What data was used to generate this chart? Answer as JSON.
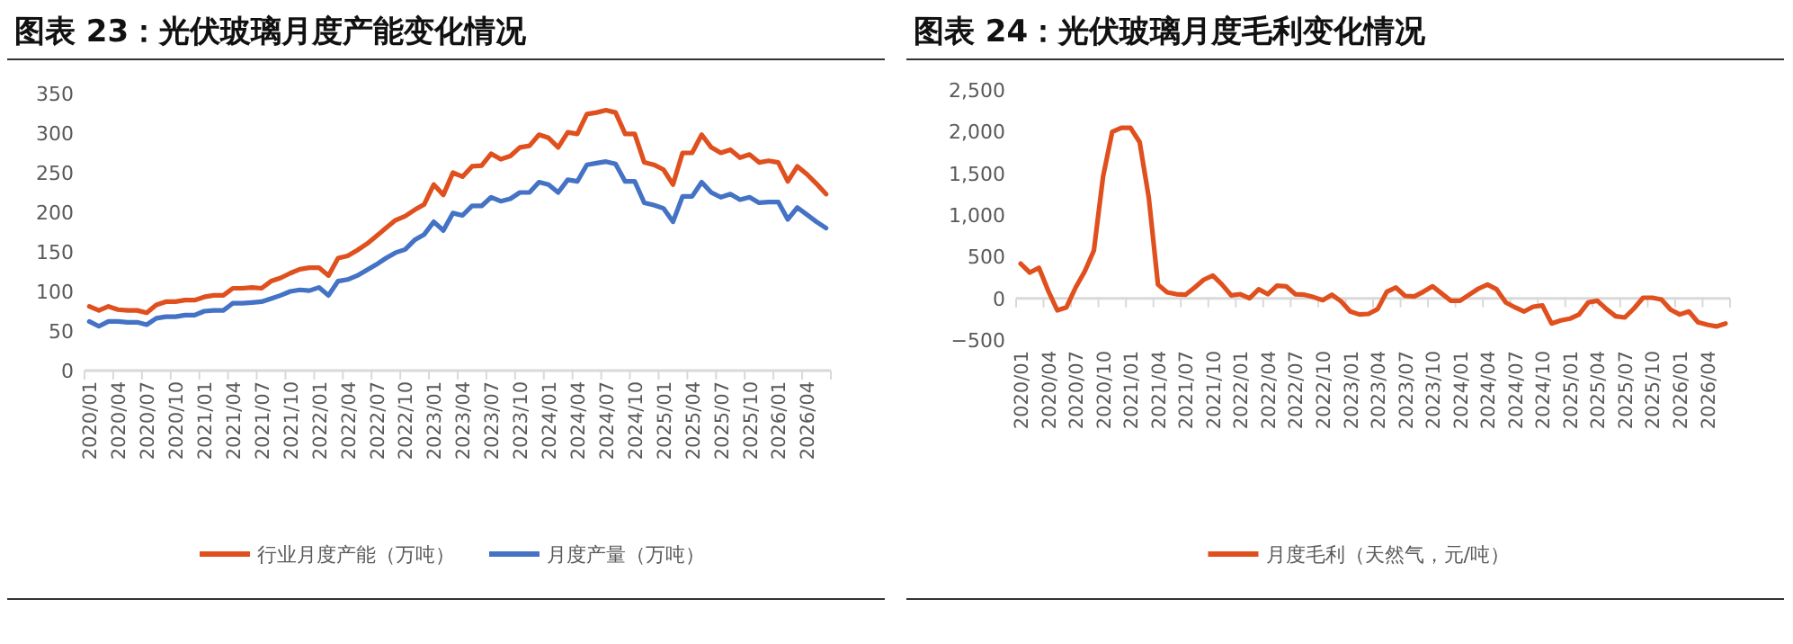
{
  "chart_data": [
    {
      "type": "line",
      "title": "图表 23：光伏玻璃月度产能变化情况",
      "legend": "bottom",
      "ylim": [
        0,
        350
      ],
      "yticks": [
        0,
        50,
        100,
        150,
        200,
        250,
        300,
        350
      ],
      "categories": [
        "2020/01",
        null,
        null,
        "2020/04",
        null,
        null,
        "2020/07",
        null,
        null,
        "2020/10",
        null,
        null,
        "2021/01",
        null,
        null,
        "2021/04",
        null,
        null,
        "2021/07",
        null,
        null,
        "2021/10",
        null,
        null,
        "2022/01",
        null,
        null,
        "2022/04",
        null,
        null,
        "2022/07",
        null,
        null,
        "2022/10",
        null,
        null,
        "2023/01",
        null,
        null,
        "2023/04",
        null,
        null,
        "2023/07",
        null,
        null,
        "2023/10",
        null,
        null,
        "2024/01",
        null,
        null,
        "2024/04",
        null,
        null,
        "2024/07",
        null,
        null,
        "2024/10",
        null,
        null,
        "2025/01",
        null,
        null,
        "2025/04",
        null,
        null,
        "2025/07",
        null,
        null,
        "2025/10",
        null,
        null,
        "2026/01",
        null,
        null,
        "2026/04",
        null,
        null
      ],
      "series": [
        {
          "name": "行业月度产能（万吨）",
          "color": "#e0501e",
          "values": [
            81,
            76,
            81,
            77,
            76,
            76,
            73,
            83,
            87,
            87,
            89,
            89,
            93,
            95,
            95,
            104,
            104,
            105,
            104,
            113,
            117,
            123,
            128,
            130,
            130,
            120,
            142,
            145,
            152,
            160,
            170,
            180,
            190,
            195,
            203,
            210,
            235,
            222,
            250,
            245,
            258,
            259,
            274,
            267,
            271,
            282,
            284,
            298,
            294,
            282,
            301,
            299,
            324,
            326,
            329,
            326,
            299,
            299,
            263,
            260,
            254,
            235,
            275,
            275,
            298,
            282,
            275,
            279,
            269,
            273,
            263,
            265,
            263,
            239,
            258,
            248,
            236,
            223
          ]
        },
        {
          "name": "月度产量（万吨）",
          "color": "#4472c4",
          "values": [
            62,
            56,
            62,
            62,
            61,
            61,
            58,
            66,
            68,
            68,
            70,
            70,
            75,
            76,
            76,
            85,
            85,
            86,
            87,
            91,
            95,
            100,
            102,
            101,
            105,
            95,
            113,
            115,
            120,
            127,
            134,
            142,
            149,
            153,
            165,
            172,
            188,
            177,
            199,
            196,
            208,
            208,
            219,
            214,
            217,
            225,
            225,
            238,
            235,
            225,
            241,
            239,
            260,
            262,
            264,
            261,
            239,
            239,
            212,
            209,
            205,
            188,
            220,
            220,
            238,
            225,
            219,
            223,
            216,
            219,
            212,
            213,
            213,
            191,
            206,
            197,
            188,
            180
          ]
        }
      ]
    },
    {
      "type": "line",
      "title": "图表 24：光伏玻璃月度毛利变化情况",
      "legend": "bottom",
      "ylim": [
        -500,
        2500
      ],
      "yticks": [
        {
          "value": -500,
          "label": "−500"
        },
        0,
        500,
        {
          "value": 1000,
          "label": "1,000"
        },
        {
          "value": 1500,
          "label": "1,500"
        },
        {
          "value": 2000,
          "label": "2,000"
        },
        {
          "value": 2500,
          "label": "2,500"
        }
      ],
      "categories": [
        "2020/01",
        null,
        null,
        "2020/04",
        null,
        null,
        "2020/07",
        null,
        null,
        "2020/10",
        null,
        null,
        "2021/01",
        null,
        null,
        "2021/04",
        null,
        null,
        "2021/07",
        null,
        null,
        "2021/10",
        null,
        null,
        "2022/01",
        null,
        null,
        "2022/04",
        null,
        null,
        "2022/07",
        null,
        null,
        "2022/10",
        null,
        null,
        "2023/01",
        null,
        null,
        "2023/04",
        null,
        null,
        "2023/07",
        null,
        null,
        "2023/10",
        null,
        null,
        "2024/01",
        null,
        null,
        "2024/04",
        null,
        null,
        "2024/07",
        null,
        null,
        "2024/10",
        null,
        null,
        "2025/01",
        null,
        null,
        "2025/04",
        null,
        null,
        "2025/07",
        null,
        null,
        "2025/10",
        null,
        null,
        "2026/01",
        null,
        null,
        "2026/04",
        null,
        null
      ],
      "series": [
        {
          "name": "月度毛利（天然气，元/吨）",
          "color": "#e0501e",
          "values": [
            416,
            309,
            366,
            93,
            -144,
            -108,
            129,
            323,
            574,
            1458,
            1996,
            2046,
            2046,
            1874,
            1206,
            165,
            72,
            50,
            43,
            129,
            223,
            273,
            165,
            36,
            50,
            0,
            108,
            50,
            151,
            144,
            50,
            43,
            14,
            -22,
            43,
            -36,
            -158,
            -194,
            -187,
            -129,
            79,
            129,
            29,
            22,
            79,
            144,
            57,
            -29,
            -29,
            43,
            115,
            165,
            108,
            -50,
            -108,
            -158,
            -101,
            -86,
            -302,
            -266,
            -244,
            -194,
            -50,
            -29,
            -129,
            -215,
            -230,
            -122,
            7,
            7,
            -14,
            -136,
            -194,
            -158,
            -287,
            -316,
            -337,
            -302
          ]
        }
      ]
    }
  ]
}
